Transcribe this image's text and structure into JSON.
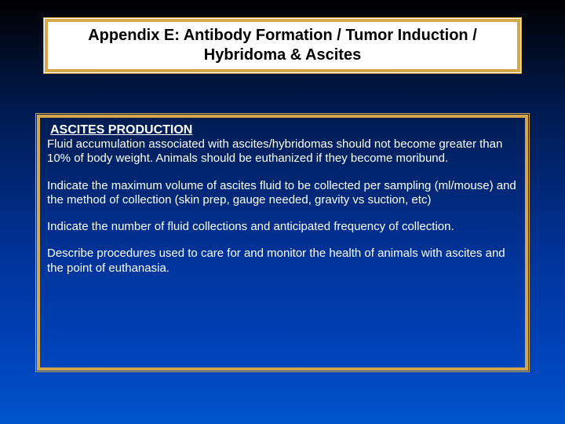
{
  "colors": {
    "border_gold": "#d4a84a",
    "title_bg": "#ffffff",
    "title_text": "#000000",
    "body_text": "#ffffff",
    "bg_gradient_top": "#000000",
    "bg_gradient_bottom": "#0055cc"
  },
  "title": {
    "line1": "Appendix E: Antibody Formation / Tumor Induction /",
    "line2": "Hybridoma & Ascites"
  },
  "content": {
    "heading": "ASCITES PRODUCTION",
    "p1": "Fluid accumulation associated with ascites/hybridomas should not become greater than 10% of body weight.  Animals should be euthanized if they become moribund.",
    "p2": "Indicate the maximum volume of ascites fluid to be collected per sampling (ml/mouse) and the method of collection  (skin prep, gauge needed, gravity vs suction, etc)",
    "p3": "Indicate the number of fluid collections and anticipated frequency of collection.",
    "p4": "Describe procedures used to care for and monitor the health of animals with ascites and the point of euthanasia."
  }
}
